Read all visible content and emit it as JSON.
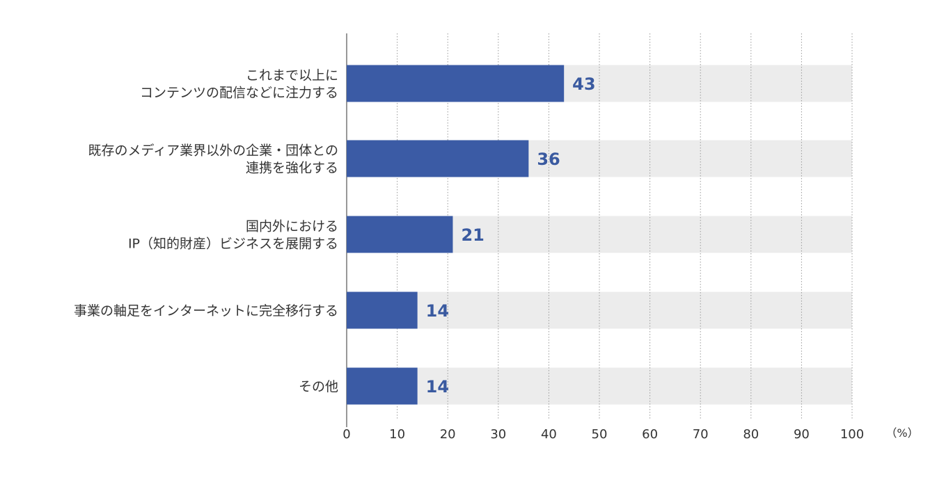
{
  "chart_data": {
    "type": "bar",
    "orientation": "horizontal",
    "categories": [
      "これまで以上に\nコンテンツの配信などに注力する",
      "既存のメディア業界以外の企業・団体との\n連携を強化する",
      "国内外における\nIP（知的財産）ビジネスを展開する",
      "事業の軸足をインターネットに完全移行する",
      "その他"
    ],
    "values": [
      43,
      36,
      21,
      14,
      14
    ],
    "xlim": [
      0,
      100
    ],
    "xticks": [
      0,
      10,
      20,
      30,
      40,
      50,
      60,
      70,
      80,
      90,
      100
    ],
    "unit": "（%）",
    "grid": true,
    "legend": "none",
    "bar_color": "#3b5ba5",
    "track_color": "#ececec",
    "grid_color": "#999999",
    "label_color": "#3a5aa0"
  }
}
